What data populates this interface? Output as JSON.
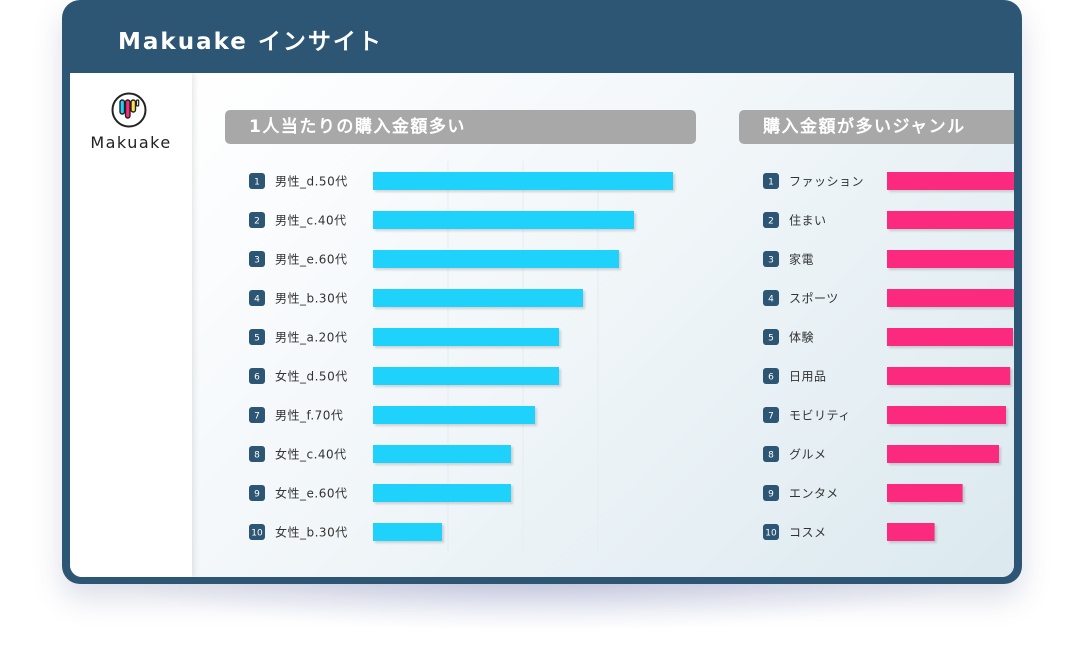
{
  "app": {
    "title": "Makuake インサイト",
    "brand": "Makuake"
  },
  "colors": {
    "frame": "#2c5673",
    "header_gray": "#a8a8a8",
    "left_bars": "#1ed2fb",
    "right_bars": "#fb2a7f",
    "rank_badge": "#2c5673"
  },
  "chart_data": [
    {
      "type": "bar",
      "orientation": "horizontal",
      "title": "1人当たりの購入金額多い",
      "ranks": [
        "1",
        "2",
        "3",
        "4",
        "5",
        "6",
        "7",
        "8",
        "9",
        "10"
      ],
      "categories": [
        "男性_d.50代",
        "男性_c.40代",
        "男性_e.60代",
        "男性_b.30代",
        "男性_a.20代",
        "女性_d.50代",
        "男性_f.70代",
        "女性_c.40代",
        "女性_e.60代",
        "女性_b.30代"
      ],
      "values": [
        100,
        87,
        82,
        70,
        62,
        62,
        54,
        46,
        46,
        23
      ],
      "xlim": [
        0,
        100
      ],
      "grid": true
    },
    {
      "type": "bar",
      "orientation": "horizontal",
      "title": "購入金額が多いジャンル",
      "ranks": [
        "1",
        "2",
        "3",
        "4",
        "5",
        "6",
        "7",
        "8",
        "9",
        "10"
      ],
      "categories": [
        "ファッション",
        "住まい",
        "家電",
        "スポーツ",
        "体験",
        "日用品",
        "モビリティ",
        "グルメ",
        "エンタメ",
        "コスメ"
      ],
      "values": [
        100,
        97,
        95,
        93,
        90,
        88,
        85,
        80,
        54,
        34
      ],
      "xlim": [
        0,
        100
      ],
      "grid": false
    }
  ]
}
